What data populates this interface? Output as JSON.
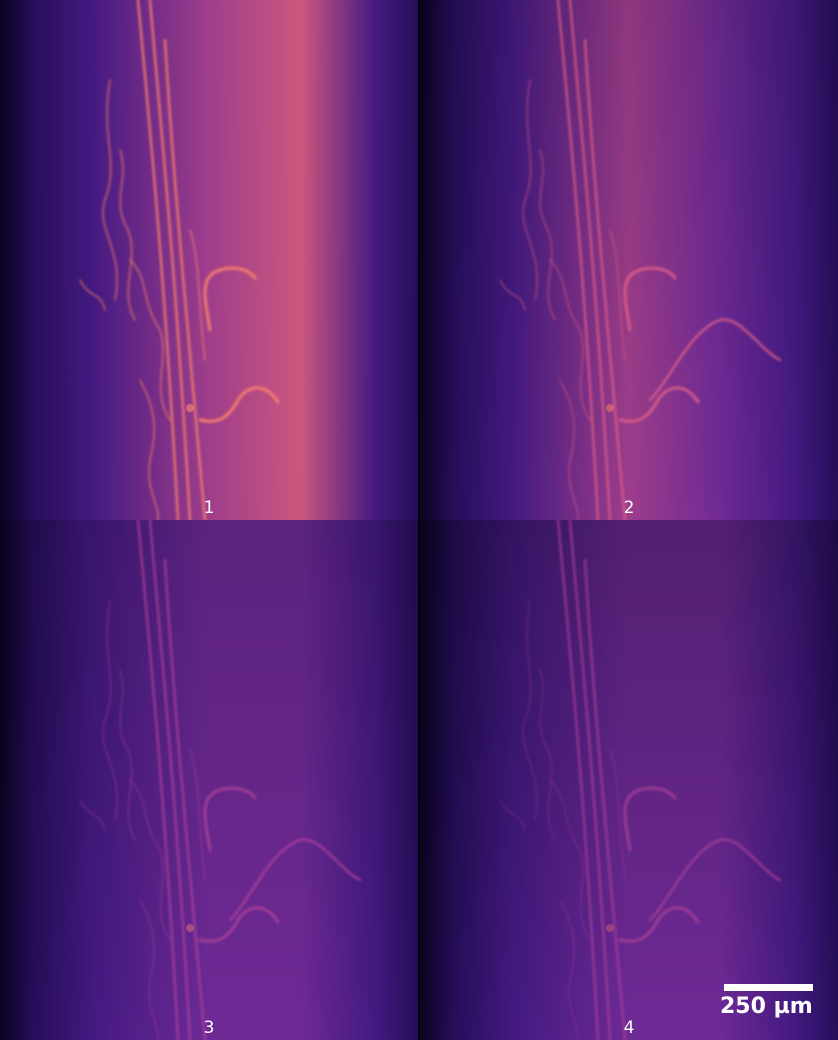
{
  "figure": {
    "panels": [
      {
        "label": "1",
        "intensity": 1.0
      },
      {
        "label": "2",
        "intensity": 0.78
      },
      {
        "label": "3",
        "intensity": 0.66
      },
      {
        "label": "4",
        "intensity": 0.5
      }
    ],
    "colormap": [
      "#0b0326",
      "#2a0f63",
      "#4a1c8f",
      "#7a2ea6",
      "#b0449a",
      "#e0608a",
      "#f7806c"
    ],
    "scalebar": {
      "label": "250 µm"
    }
  }
}
